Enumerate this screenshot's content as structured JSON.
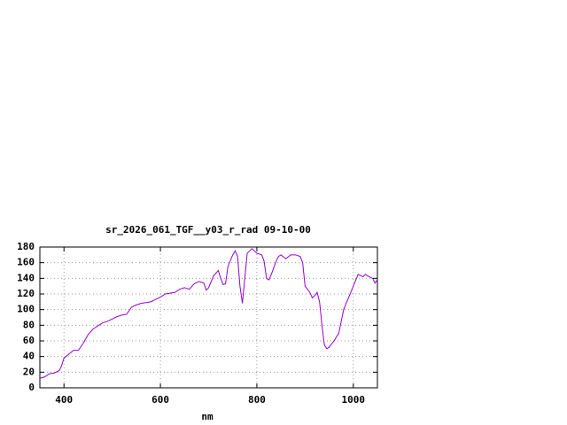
{
  "chart_data": {
    "type": "line",
    "title": "sr_2026_061_TGF__y03_r_rad 09-10-00",
    "x_label": "nm",
    "x": [
      350,
      360,
      370,
      380,
      390,
      395,
      400,
      410,
      420,
      430,
      440,
      450,
      460,
      470,
      480,
      490,
      500,
      510,
      520,
      530,
      540,
      550,
      560,
      570,
      580,
      590,
      600,
      610,
      620,
      630,
      640,
      650,
      660,
      670,
      680,
      690,
      695,
      700,
      710,
      720,
      725,
      730,
      735,
      740,
      750,
      755,
      760,
      765,
      770,
      775,
      780,
      790,
      800,
      810,
      815,
      820,
      825,
      830,
      840,
      845,
      850,
      860,
      870,
      880,
      890,
      895,
      900,
      910,
      915,
      920,
      925,
      930,
      935,
      940,
      945,
      950,
      960,
      970,
      980,
      990,
      1000,
      1010,
      1020,
      1025,
      1030,
      1040,
      1045,
      1050
    ],
    "series": [
      {
        "color": "#9400d3",
        "values": [
          12,
          14,
          18,
          19,
          22,
          28,
          38,
          43,
          48,
          48,
          57,
          68,
          75,
          79,
          83,
          85,
          88,
          91,
          93,
          94,
          103,
          106,
          108,
          109,
          110,
          113,
          116,
          120,
          121,
          122,
          126,
          128,
          126,
          133,
          136,
          134,
          125,
          128,
          143,
          150,
          140,
          132,
          133,
          155,
          170,
          175,
          168,
          130,
          108,
          140,
          172,
          178,
          172,
          170,
          162,
          140,
          138,
          145,
          162,
          168,
          170,
          165,
          170,
          170,
          168,
          160,
          130,
          122,
          115,
          118,
          122,
          110,
          80,
          55,
          50,
          52,
          60,
          70,
          100,
          115,
          130,
          145,
          142,
          145,
          143,
          140,
          134,
          138
        ]
      }
    ],
    "xlim": [
      350,
      1050
    ],
    "ylim": [
      0,
      180
    ],
    "xticks": [
      400,
      600,
      800,
      1000
    ],
    "yticks": [
      0,
      20,
      40,
      60,
      80,
      100,
      120,
      140,
      160,
      180
    ],
    "grid": true
  }
}
